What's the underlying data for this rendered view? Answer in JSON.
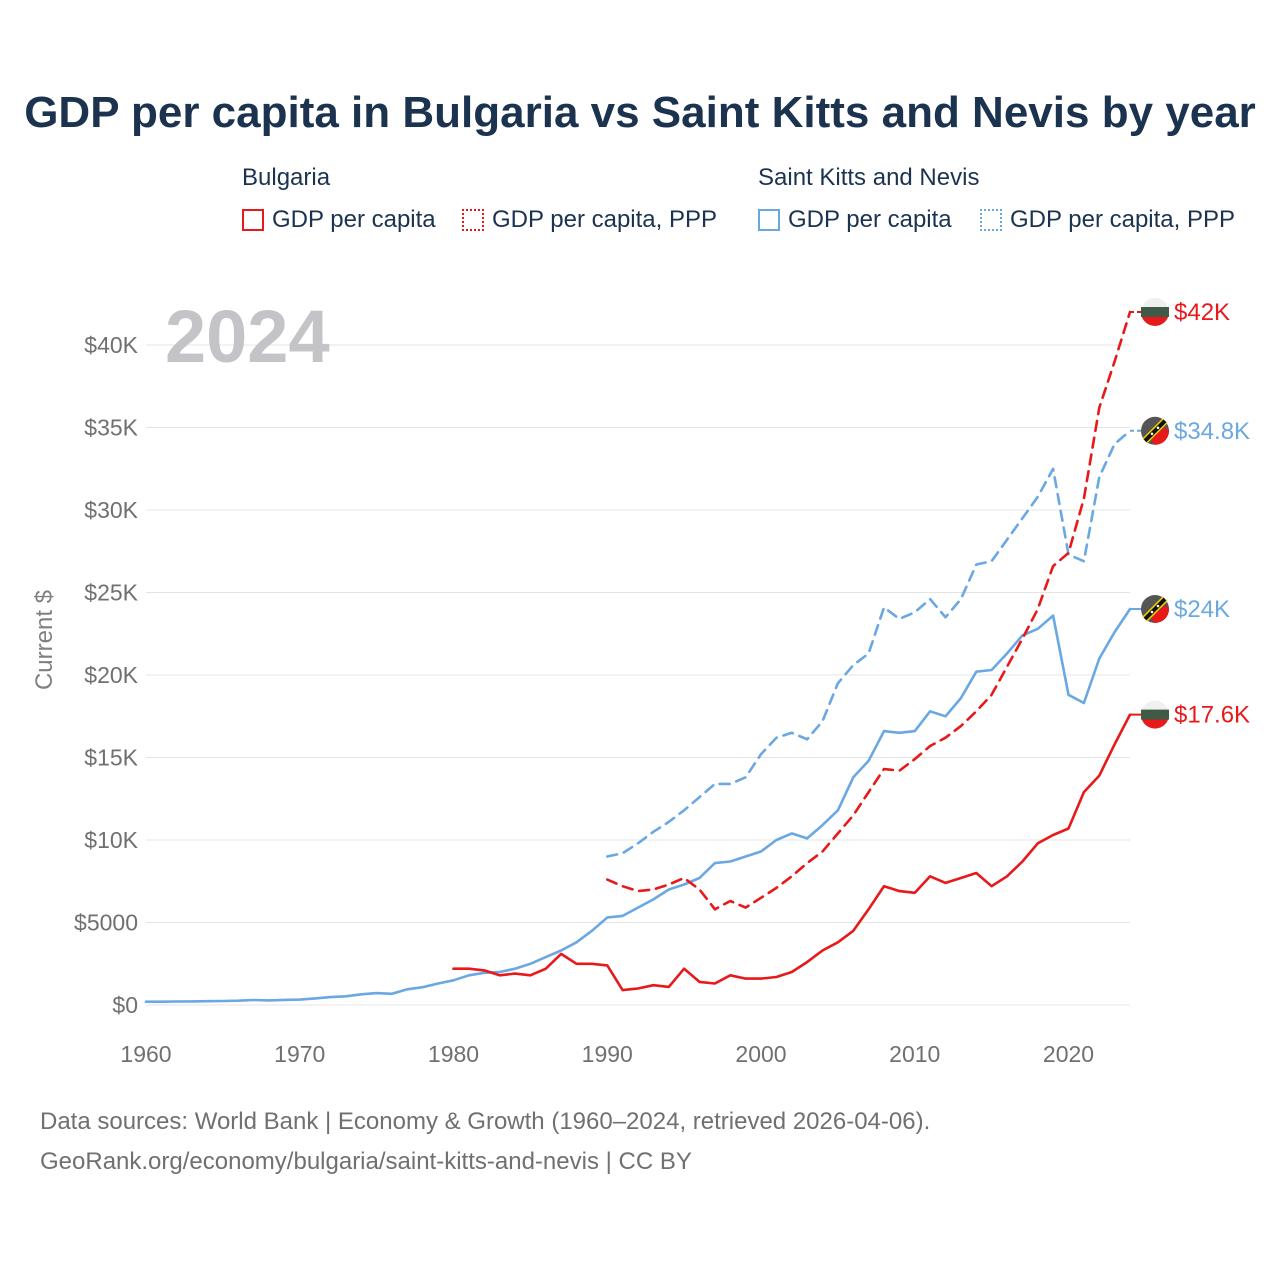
{
  "title": "GDP per capita in Bulgaria vs Saint Kitts and Nevis by year",
  "legend": {
    "groups": [
      {
        "name": "Bulgaria",
        "color": "#e8191a",
        "items": [
          "GDP per capita",
          "GDP per capita, PPP"
        ]
      },
      {
        "name": "Saint Kitts and Nevis",
        "color": "#6aa8e3",
        "items": [
          "GDP per capita",
          "GDP per capita, PPP"
        ]
      }
    ]
  },
  "footer": {
    "line1": "Data sources: World Bank | Economy & Growth (1960–2024, retrieved 2026-04-06).",
    "line2": "GeoRank.org/economy/bulgaria/saint-kitts-and-nevis | CC BY"
  },
  "chart_data": {
    "type": "line",
    "title": "GDP per capita in Bulgaria vs Saint Kitts and Nevis by year",
    "ylabel": "Current $",
    "xlabel": "",
    "year_overlay": "2024",
    "xlim": [
      1960,
      2024
    ],
    "ylim": [
      0,
      42000
    ],
    "x_ticks": [
      1960,
      1970,
      1980,
      1990,
      2000,
      2010,
      2020
    ],
    "y_ticks": [
      0,
      5000,
      10000,
      15000,
      20000,
      25000,
      30000,
      35000,
      40000
    ],
    "y_tick_labels": [
      "$0",
      "$5000",
      "$10K",
      "$15K",
      "$20K",
      "$25K",
      "$30K",
      "$35K",
      "$40K"
    ],
    "grid": true,
    "series": [
      {
        "name": "Saint Kitts and Nevis GDP per capita",
        "color": "#6aa8e3",
        "dash": false,
        "end_label": "$24K",
        "flag": "saint-kitts-and-nevis",
        "start_year": 1960,
        "values": [
          200,
          200,
          210,
          220,
          230,
          240,
          260,
          300,
          280,
          310,
          330,
          400,
          480,
          530,
          650,
          720,
          680,
          950,
          1080,
          1300,
          1500,
          1800,
          1950,
          2000,
          2200,
          2500,
          2900,
          3300,
          3800,
          4500,
          5300,
          5400,
          5900,
          6400,
          7000,
          7300,
          7700,
          8600,
          8700,
          9000,
          9300,
          10000,
          10400,
          10100,
          10900,
          11800,
          13800,
          14800,
          16600,
          16500,
          16600,
          17800,
          17500,
          18600,
          20200,
          20300,
          21300,
          22400,
          22800,
          23600,
          18800,
          18300,
          21000,
          22600,
          24000
        ]
      },
      {
        "name": "Saint Kitts and Nevis GDP per capita, PPP",
        "color": "#6aa8e3",
        "dash": true,
        "end_label": "$34.8K",
        "flag": "saint-kitts-and-nevis",
        "start_year": 1990,
        "values": [
          9000,
          9200,
          9800,
          10500,
          11100,
          11800,
          12600,
          13400,
          13400,
          13800,
          15200,
          16200,
          16500,
          16100,
          17200,
          19500,
          20600,
          21300,
          24100,
          23400,
          23800,
          24600,
          23500,
          24600,
          26700,
          26900,
          28200,
          29500,
          30800,
          32500,
          27300,
          26900,
          32000,
          34000,
          34800
        ]
      },
      {
        "name": "Bulgaria GDP per capita",
        "color": "#e8191a",
        "dash": false,
        "end_label": "$17.6K",
        "flag": "bulgaria",
        "start_year": 1980,
        "values": [
          2200,
          2200,
          2100,
          1800,
          1900,
          1800,
          2200,
          3100,
          2500,
          2500,
          2400,
          900,
          1000,
          1200,
          1100,
          2200,
          1400,
          1300,
          1800,
          1600,
          1600,
          1700,
          2000,
          2600,
          3300,
          3800,
          4500,
          5800,
          7200,
          6900,
          6800,
          7800,
          7400,
          7700,
          8000,
          7200,
          7800,
          8700,
          9800,
          10300,
          10700,
          12900,
          13900,
          15800,
          17600
        ]
      },
      {
        "name": "Bulgaria GDP per capita, PPP",
        "color": "#e8191a",
        "dash": true,
        "end_label": "$42K",
        "flag": "bulgaria",
        "start_year": 1990,
        "values": [
          7600,
          7200,
          6900,
          7000,
          7300,
          7700,
          7000,
          5800,
          6300,
          5900,
          6500,
          7100,
          7800,
          8600,
          9300,
          10400,
          11500,
          12900,
          14300,
          14200,
          14900,
          15700,
          16200,
          16900,
          17800,
          18800,
          20500,
          22200,
          24000,
          26600,
          27400,
          30700,
          36200,
          39000,
          42000
        ]
      }
    ]
  }
}
